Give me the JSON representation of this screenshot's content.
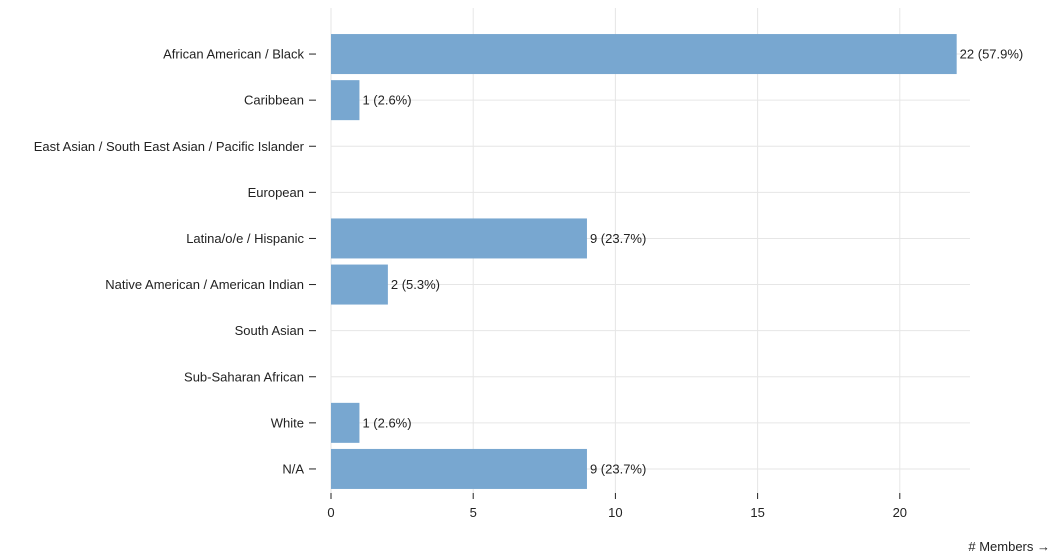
{
  "chart_data": {
    "type": "bar",
    "orientation": "horizontal",
    "categories": [
      "African American / Black",
      "Caribbean",
      "East Asian / South East Asian / Pacific Islander",
      "European",
      "Latina/o/e / Hispanic",
      "Native American / American Indian",
      "South Asian",
      "Sub-Saharan African",
      "White",
      "N/A"
    ],
    "values": [
      22,
      1,
      0,
      0,
      9,
      2,
      0,
      0,
      1,
      9
    ],
    "data_labels": [
      "22 (57.9%)",
      "1 (2.6%)",
      "",
      "",
      "9 (23.7%)",
      "2 (5.3%)",
      "",
      "",
      "1 (2.6%)",
      "9 (23.7%)"
    ],
    "x_ticks": [
      "0",
      "5",
      "10",
      "15",
      "20"
    ],
    "xlabel": "# Members →",
    "xlim": [
      0,
      22.5
    ],
    "grid": true,
    "bar_color": "#78a7d0",
    "grid_color": "#e6e6e6",
    "text_color": "#222222"
  }
}
